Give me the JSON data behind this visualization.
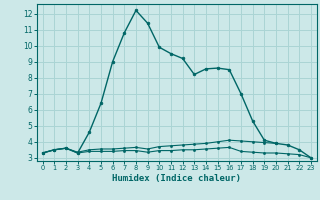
{
  "xlabel": "Humidex (Indice chaleur)",
  "bg_color": "#cce8e8",
  "grid_color": "#aad4d4",
  "line_color": "#006666",
  "x_main": [
    0,
    1,
    2,
    3,
    4,
    5,
    6,
    7,
    8,
    9,
    10,
    11,
    12,
    13,
    14,
    15,
    16,
    17,
    18,
    19,
    20,
    21,
    22,
    23
  ],
  "y_main": [
    3.3,
    3.5,
    3.6,
    3.3,
    4.6,
    6.4,
    9.0,
    10.8,
    12.2,
    11.4,
    9.9,
    9.5,
    9.2,
    8.2,
    8.55,
    8.6,
    8.5,
    7.0,
    5.3,
    4.1,
    3.9,
    3.8,
    3.5,
    3.0
  ],
  "x_flat1": [
    0,
    1,
    2,
    3,
    4,
    5,
    6,
    7,
    8,
    9,
    10,
    11,
    12,
    13,
    14,
    15,
    16,
    17,
    18,
    19,
    20
  ],
  "y_flat1": [
    3.3,
    3.5,
    3.6,
    3.35,
    3.5,
    3.55,
    3.55,
    3.6,
    3.65,
    3.55,
    3.7,
    3.75,
    3.8,
    3.85,
    3.9,
    4.0,
    4.1,
    4.05,
    4.0,
    3.95,
    3.9
  ],
  "x_flat2": [
    0,
    1,
    2,
    3,
    4,
    5,
    6,
    7,
    8,
    9,
    10,
    11,
    12,
    13,
    14,
    15,
    16,
    17,
    18,
    19,
    20,
    21,
    22,
    23
  ],
  "y_flat2": [
    3.3,
    3.5,
    3.6,
    3.3,
    3.4,
    3.4,
    3.4,
    3.45,
    3.45,
    3.35,
    3.45,
    3.45,
    3.5,
    3.5,
    3.55,
    3.6,
    3.65,
    3.4,
    3.35,
    3.3,
    3.3,
    3.25,
    3.2,
    3.0
  ],
  "xlim": [
    -0.5,
    23.5
  ],
  "ylim": [
    2.8,
    12.6
  ],
  "yticks": [
    3,
    4,
    5,
    6,
    7,
    8,
    9,
    10,
    11,
    12
  ],
  "xticks": [
    0,
    1,
    2,
    3,
    4,
    5,
    6,
    7,
    8,
    9,
    10,
    11,
    12,
    13,
    14,
    15,
    16,
    17,
    18,
    19,
    20,
    21,
    22,
    23
  ]
}
